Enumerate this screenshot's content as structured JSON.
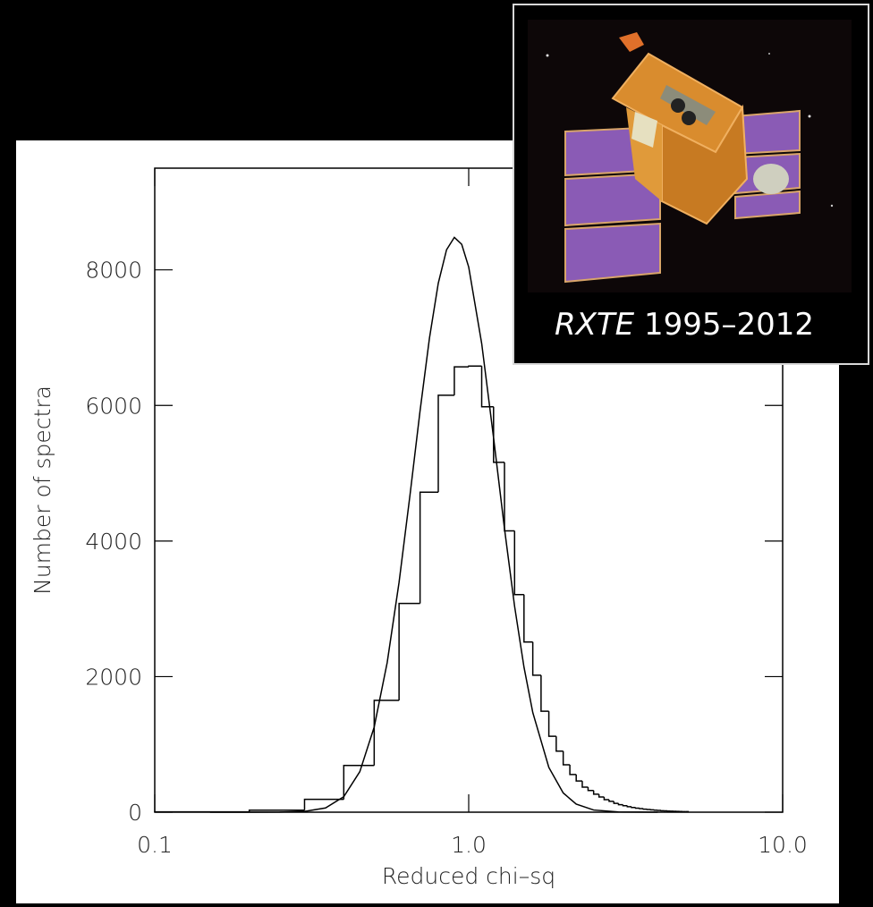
{
  "chart_data": {
    "type": "histogram",
    "x_label": "Reduced chi–sq",
    "y_label": "Number of spectra",
    "xscale": "log",
    "xlim": [
      0.1,
      10
    ],
    "xticks": [
      0.1,
      {
        "value": 1,
        "label": "1.0"
      },
      {
        "value": 10,
        "label": "10.0"
      }
    ],
    "ylim": [
      0,
      9500
    ],
    "yticks": [
      0,
      2000,
      4000,
      6000,
      8000
    ],
    "color": "#000000",
    "bins": [
      0.1,
      0.2,
      0.3,
      0.4,
      0.5,
      0.6,
      0.7,
      0.8,
      0.9,
      1.0,
      1.1,
      1.2,
      1.3,
      1.4,
      1.5,
      1.6,
      1.7,
      1.8,
      1.9,
      2.0,
      2.1,
      2.2,
      2.3,
      2.4,
      2.5,
      2.6,
      2.7,
      2.8,
      2.9,
      3.0,
      3.1,
      3.2,
      3.3,
      3.4,
      3.5,
      3.6,
      3.7,
      3.8,
      3.9,
      4.0,
      4.1,
      4.2,
      4.3,
      4.4,
      4.5,
      4.6,
      4.7,
      4.8,
      4.9,
      5.0
    ],
    "values": [
      5,
      30,
      190,
      690,
      1650,
      3080,
      4720,
      6150,
      6570,
      6580,
      5980,
      5160,
      4150,
      3210,
      2510,
      2020,
      1490,
      1120,
      900,
      700,
      555,
      460,
      370,
      320,
      265,
      225,
      185,
      160,
      130,
      110,
      95,
      80,
      70,
      60,
      52,
      45,
      40,
      35,
      30,
      26,
      22,
      20,
      17,
      15,
      13,
      11,
      10,
      9,
      8
    ],
    "curve": {
      "type": "line",
      "color": "#000000",
      "x": [
        0.15,
        0.2,
        0.25,
        0.3,
        0.35,
        0.4,
        0.45,
        0.5,
        0.55,
        0.6,
        0.65,
        0.7,
        0.75,
        0.8,
        0.85,
        0.9,
        0.95,
        1.0,
        1.1,
        1.2,
        1.3,
        1.4,
        1.5,
        1.6,
        1.8,
        2.0,
        2.2,
        2.5,
        3.0,
        4.0
      ],
      "values": [
        0,
        0,
        1,
        11,
        63,
        228,
        598,
        1256,
        2207,
        3389,
        4673,
        5921,
        6995,
        7802,
        8296,
        8479,
        8377,
        8042,
        6913,
        5525,
        4184,
        3039,
        2140,
        1470,
        660,
        284,
        119,
        32,
        4,
        0
      ]
    }
  },
  "inset": {
    "mission": "RXTE",
    "years": "1995–2012"
  }
}
